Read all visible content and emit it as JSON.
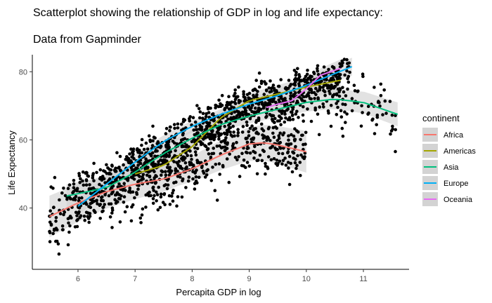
{
  "chart_data": {
    "type": "scatter",
    "title": "Scatterplot showing the relationship of GDP in log and life expectancy:",
    "subtitle": "Data from Gapminder",
    "xlabel": "Percapita GDP in log",
    "ylabel": "Life Expectancy",
    "xlim": [
      5.2,
      11.8
    ],
    "ylim": [
      22,
      85
    ],
    "xticks": [
      6,
      7,
      8,
      9,
      10,
      11
    ],
    "yticks": [
      40,
      60,
      80
    ],
    "grid": false,
    "point_color": "#000000",
    "legend": {
      "title": "continent",
      "placement": "right"
    },
    "series": [
      {
        "name": "Africa",
        "color": "#F8766D",
        "range": [
          5.5,
          10.0
        ],
        "ci": 3.5,
        "x": [
          5.5,
          6.0,
          6.5,
          7.0,
          7.5,
          8.0,
          8.5,
          9.0,
          9.25,
          9.5,
          10.0
        ],
        "y": [
          37.5,
          41.5,
          44.8,
          47.0,
          48.5,
          51.5,
          55.5,
          58.8,
          59.2,
          58.5,
          56.5
        ]
      },
      {
        "name": "Americas",
        "color": "#A3A500",
        "range": [
          7.0,
          10.6
        ],
        "ci": 2.0,
        "x": [
          7.0,
          7.5,
          8.0,
          8.5,
          9.0,
          9.5,
          10.0,
          10.6
        ],
        "y": [
          50.0,
          52.5,
          58.0,
          66.5,
          71.5,
          73.5,
          75.5,
          77.5
        ]
      },
      {
        "name": "Asia",
        "color": "#00BF7D",
        "range": [
          5.8,
          11.6
        ],
        "ci": 2.0,
        "x": [
          5.8,
          6.5,
          7.0,
          7.5,
          8.0,
          8.5,
          9.0,
          9.5,
          10.0,
          10.5,
          11.0,
          11.6
        ],
        "y": [
          43.5,
          46.0,
          50.5,
          56.0,
          60.5,
          64.5,
          67.0,
          69.0,
          71.0,
          72.0,
          71.0,
          67.5
        ]
      },
      {
        "name": "Europe",
        "color": "#00B0F6",
        "range": [
          6.0,
          10.8
        ],
        "ci": 1.5,
        "x": [
          6.0,
          6.5,
          7.0,
          7.5,
          8.0,
          8.5,
          9.0,
          9.5,
          10.0,
          10.5,
          10.8
        ],
        "y": [
          40.5,
          47.0,
          53.5,
          59.5,
          64.0,
          67.5,
          70.5,
          73.0,
          76.0,
          79.5,
          81.5
        ]
      },
      {
        "name": "Oceania",
        "color": "#E76BF3",
        "range": [
          9.3,
          10.6
        ],
        "ci": 1.5,
        "x": [
          9.3,
          9.5,
          9.75,
          10.0,
          10.25,
          10.6
        ],
        "y": [
          69.5,
          70.5,
          71.5,
          75.0,
          79.0,
          81.0
        ]
      }
    ]
  }
}
